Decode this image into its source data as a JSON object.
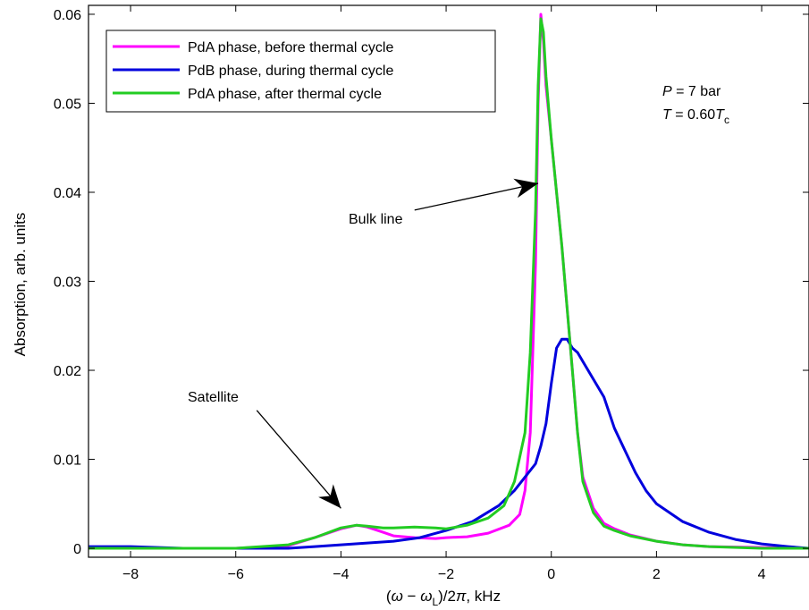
{
  "chart_data": {
    "type": "line",
    "xlabel": "(ω − ωL)/2π, kHz",
    "ylabel": "Absorption, arb. units",
    "xlim": [
      -8.8,
      4.9
    ],
    "ylim": [
      -0.001,
      0.061
    ],
    "x_ticks": [
      -8,
      -6,
      -4,
      -2,
      0,
      2,
      4
    ],
    "x_tick_labels": [
      "−8",
      "−6",
      "−4",
      "−2",
      "0",
      "2",
      "4"
    ],
    "y_ticks": [
      0,
      0.01,
      0.02,
      0.03,
      0.04,
      0.05,
      0.06
    ],
    "y_tick_labels": [
      "0",
      "0.01",
      "0.02",
      "0.03",
      "0.04",
      "0.05",
      "0.06"
    ],
    "grid": false,
    "legend_position": "top-left",
    "series": [
      {
        "name": "PdA phase, before thermal cycle",
        "color": "#ff00ff",
        "x": [
          -8.8,
          -8,
          -7,
          -6,
          -5,
          -4.5,
          -4,
          -3.7,
          -3.5,
          -3.2,
          -3,
          -2.6,
          -2.2,
          -2,
          -1.6,
          -1.2,
          -0.8,
          -0.6,
          -0.5,
          -0.4,
          -0.3,
          -0.25,
          -0.2,
          -0.15,
          -0.1,
          0,
          0.1,
          0.2,
          0.3,
          0.4,
          0.5,
          0.6,
          0.8,
          1,
          1.2,
          1.5,
          2,
          2.5,
          3,
          4,
          4.9
        ],
        "y": [
          0,
          0,
          0,
          0,
          0.0003,
          0.0012,
          0.0022,
          0.0026,
          0.0024,
          0.0018,
          0.0014,
          0.0012,
          0.0011,
          0.0012,
          0.0013,
          0.0017,
          0.0026,
          0.0038,
          0.0065,
          0.013,
          0.032,
          0.05,
          0.06,
          0.057,
          0.052,
          0.046,
          0.04,
          0.034,
          0.027,
          0.02,
          0.013,
          0.008,
          0.0045,
          0.0028,
          0.0022,
          0.0015,
          0.0008,
          0.0004,
          0.0002,
          0.0001,
          0
        ]
      },
      {
        "name": "PdB phase, during thermal cycle",
        "color": "#0000dd",
        "x": [
          -8.8,
          -8,
          -7,
          -6,
          -5,
          -4.5,
          -4,
          -3.5,
          -3,
          -2.5,
          -2,
          -1.5,
          -1,
          -0.7,
          -0.5,
          -0.3,
          -0.2,
          -0.1,
          0,
          0.1,
          0.2,
          0.3,
          0.4,
          0.5,
          0.6,
          0.8,
          1,
          1.2,
          1.4,
          1.6,
          1.8,
          2,
          2.5,
          3,
          3.5,
          4,
          4.5,
          4.9
        ],
        "y": [
          0.0002,
          0.0002,
          0,
          0,
          0,
          0.0002,
          0.0004,
          0.0006,
          0.0008,
          0.0012,
          0.002,
          0.003,
          0.0048,
          0.0065,
          0.008,
          0.0095,
          0.0115,
          0.014,
          0.0185,
          0.0225,
          0.0235,
          0.0235,
          0.0225,
          0.022,
          0.021,
          0.019,
          0.017,
          0.0135,
          0.011,
          0.0085,
          0.0065,
          0.005,
          0.003,
          0.0018,
          0.001,
          0.0005,
          0.0002,
          0
        ]
      },
      {
        "name": "PdA phase, after thermal cycle",
        "color": "#22cc22",
        "x": [
          -8.8,
          -8,
          -7,
          -6,
          -5,
          -4.5,
          -4,
          -3.7,
          -3.5,
          -3.2,
          -3,
          -2.6,
          -2.2,
          -2,
          -1.6,
          -1.2,
          -0.9,
          -0.7,
          -0.5,
          -0.4,
          -0.3,
          -0.25,
          -0.2,
          -0.15,
          -0.1,
          0,
          0.1,
          0.2,
          0.3,
          0.4,
          0.5,
          0.6,
          0.8,
          1,
          1.2,
          1.5,
          2,
          2.5,
          3,
          4,
          4.9
        ],
        "y": [
          0,
          0,
          0,
          0,
          0.0004,
          0.0012,
          0.0023,
          0.0026,
          0.0025,
          0.0023,
          0.0023,
          0.0024,
          0.0023,
          0.0022,
          0.0026,
          0.0034,
          0.0048,
          0.0075,
          0.013,
          0.022,
          0.038,
          0.052,
          0.0595,
          0.058,
          0.053,
          0.046,
          0.04,
          0.034,
          0.027,
          0.02,
          0.013,
          0.0075,
          0.004,
          0.0025,
          0.002,
          0.0014,
          0.0008,
          0.0004,
          0.0002,
          0,
          0
        ]
      }
    ],
    "annotations": [
      {
        "name": "bulk-line",
        "text": "Bulk line",
        "from": [
          -2.6,
          0.038
        ],
        "to": [
          -0.25,
          0.041
        ]
      },
      {
        "name": "satellite",
        "text": "Satellite",
        "from": [
          -5.6,
          0.0155
        ],
        "to": [
          -4.0,
          0.0045
        ]
      }
    ],
    "conditions": {
      "p_label": "P",
      "p_value": " = 7 bar",
      "t_label": "T",
      "t_value": " = 0.60",
      "t_sub_symbol": "T",
      "t_sub": "c"
    }
  }
}
